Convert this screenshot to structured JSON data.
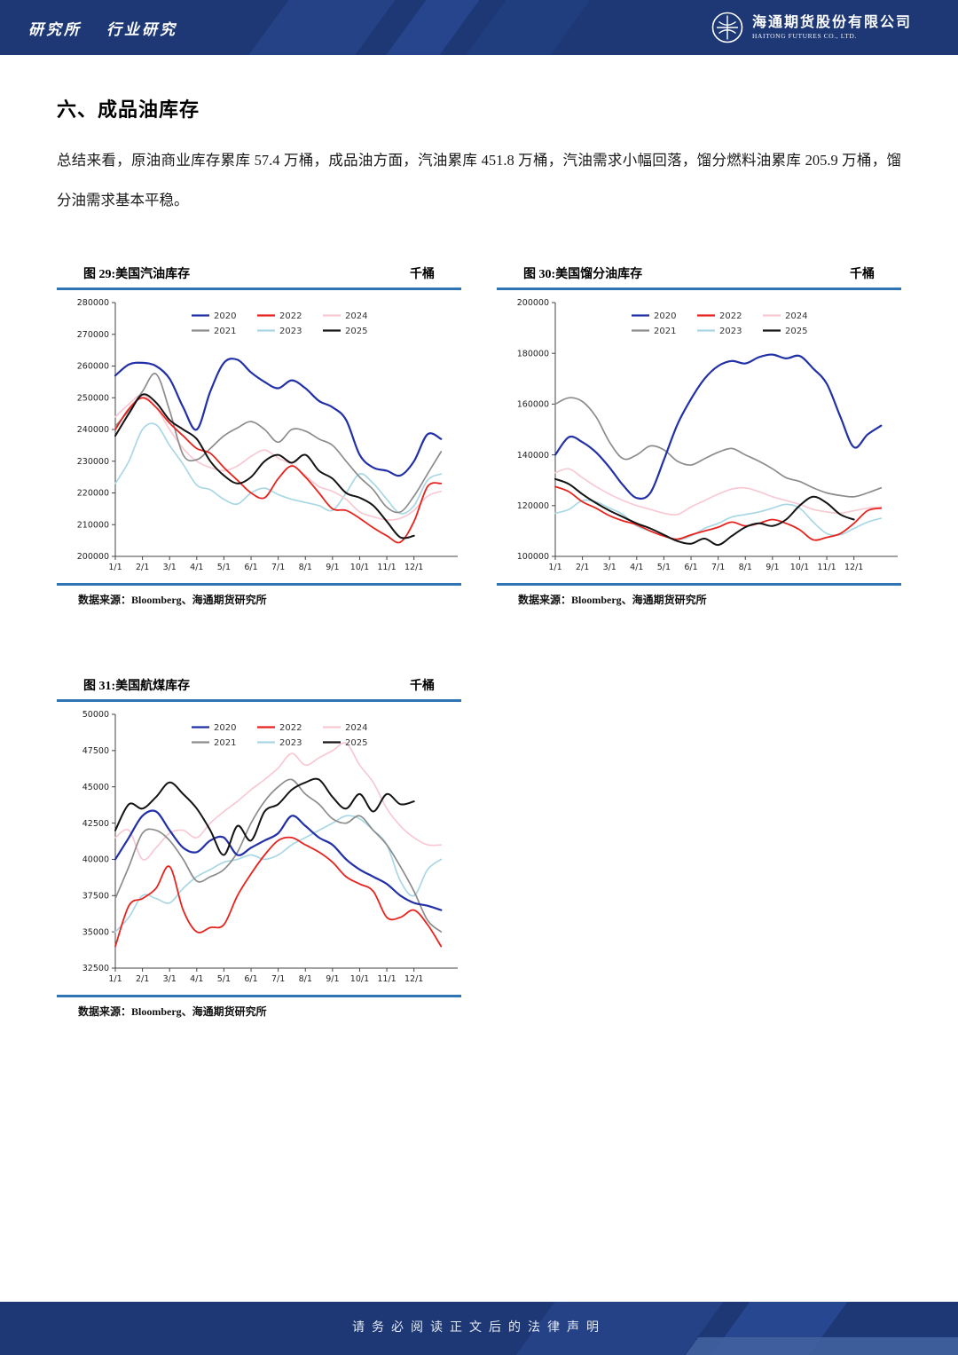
{
  "header": {
    "institute": "研究所",
    "report_type": "行业研究",
    "company_cn": "海通期货股份有限公司",
    "company_en": "HAITONG FUTURES CO., LTD."
  },
  "section": {
    "title": "六、成品油库存",
    "summary": "总结来看，原油商业库存累库 57.4 万桶，成品油方面，汽油累库 451.8 万桶，汽油需求小幅回落，馏分燃料油累库 205.9 万桶，馏分油需求基本平稳。"
  },
  "footer": {
    "disclaimer": "请务必阅读正文后的法律声明"
  },
  "colors": {
    "band_blue": "#1d3875",
    "rule_blue": "#2e74b5",
    "s2020": "#2230a8",
    "s2021": "#8c8c8c",
    "s2022": "#e8231d",
    "s2023": "#a9d8e4",
    "s2024": "#f8c9d3",
    "s2025": "#141414"
  },
  "chart_data": [
    {
      "id": "fig29",
      "type": "line",
      "title": "图 29:美国汽油库存",
      "unit": "千桶",
      "source": "数据来源：Bloomberg、海通期货研究所",
      "x_tick_labels": [
        "1/1",
        "2/1",
        "3/1",
        "4/1",
        "5/1",
        "6/1",
        "7/1",
        "8/1",
        "9/1",
        "10/1",
        "11/1",
        "12/1"
      ],
      "ylim": [
        200000,
        280000
      ],
      "y_ticks": [
        200000,
        210000,
        220000,
        230000,
        240000,
        250000,
        260000,
        270000,
        280000
      ],
      "legend_rows": [
        [
          "2020",
          "2022",
          "2024"
        ],
        [
          "2021",
          "2023",
          "2025"
        ]
      ],
      "series": [
        {
          "name": "2020",
          "color": "#2230a8",
          "width": 2.2,
          "x_span": 12,
          "values": [
            257000,
            260500,
            261000,
            260000,
            256000,
            247000,
            240000,
            252000,
            261000,
            262000,
            258000,
            255000,
            253000,
            255500,
            253000,
            249000,
            247000,
            243000,
            232000,
            228000,
            227000,
            225500,
            230000,
            238500,
            237000
          ]
        },
        {
          "name": "2021",
          "color": "#8c8c8c",
          "width": 1.7,
          "x_span": 12,
          "values": [
            241000,
            246000,
            252000,
            257500,
            246000,
            232000,
            230500,
            234000,
            238000,
            240500,
            242500,
            240000,
            236000,
            240000,
            239500,
            237000,
            235000,
            230000,
            225000,
            221000,
            215500,
            214000,
            219000,
            226000,
            233000
          ]
        },
        {
          "name": "2022",
          "color": "#e8231d",
          "width": 1.8,
          "x_span": 12,
          "values": [
            240000,
            246500,
            250000,
            247000,
            242000,
            238000,
            234000,
            232500,
            228000,
            224000,
            220000,
            218500,
            224500,
            228500,
            225000,
            220000,
            215000,
            214500,
            212000,
            209000,
            206500,
            204500,
            211000,
            222000,
            223000
          ]
        },
        {
          "name": "2023",
          "color": "#a9d8e4",
          "width": 1.7,
          "x_span": 12,
          "values": [
            223000,
            230000,
            240000,
            241500,
            235000,
            229000,
            222500,
            221000,
            218000,
            216500,
            220000,
            221500,
            219500,
            218000,
            217000,
            216000,
            214500,
            220000,
            226000,
            223000,
            218000,
            213500,
            216000,
            224000,
            226000
          ]
        },
        {
          "name": "2024",
          "color": "#f8c9d3",
          "width": 1.7,
          "x_span": 12,
          "values": [
            244000,
            248000,
            251000,
            247000,
            240000,
            234000,
            230000,
            228000,
            227000,
            228500,
            231500,
            233500,
            231000,
            229000,
            225500,
            222000,
            220500,
            218000,
            214000,
            212500,
            211500,
            212000,
            214500,
            219000,
            220500
          ]
        },
        {
          "name": "2025",
          "color": "#141414",
          "width": 2.0,
          "x_span": 11,
          "values": [
            238000,
            245000,
            251000,
            248500,
            243000,
            240000,
            237000,
            230000,
            225500,
            223000,
            225000,
            230000,
            232000,
            229500,
            232000,
            227000,
            224500,
            220000,
            218500,
            216000,
            211000,
            206000,
            206500
          ]
        }
      ]
    },
    {
      "id": "fig30",
      "type": "line",
      "title": "图 30:美国馏分油库存",
      "unit": "千桶",
      "source": "数据来源：Bloomberg、海通期货研究所",
      "x_tick_labels": [
        "1/1",
        "2/1",
        "3/1",
        "4/1",
        "5/1",
        "6/1",
        "7/1",
        "8/1",
        "9/1",
        "10/1",
        "11/1",
        "12/1"
      ],
      "ylim": [
        100000,
        200000
      ],
      "y_ticks": [
        100000,
        120000,
        140000,
        160000,
        180000,
        200000
      ],
      "legend_rows": [
        [
          "2020",
          "2022",
          "2024"
        ],
        [
          "2021",
          "2023",
          "2025"
        ]
      ],
      "series": [
        {
          "name": "2020",
          "color": "#2230a8",
          "width": 2.2,
          "x_span": 12,
          "values": [
            140000,
            147000,
            145000,
            141000,
            135000,
            128000,
            123000,
            125000,
            138000,
            152000,
            162000,
            170000,
            175000,
            177000,
            176000,
            178500,
            179500,
            178000,
            179000,
            174000,
            168000,
            155000,
            143000,
            148000,
            151500
          ]
        },
        {
          "name": "2021",
          "color": "#8c8c8c",
          "width": 1.7,
          "x_span": 12,
          "values": [
            160000,
            162500,
            161000,
            155000,
            145000,
            138500,
            140000,
            143500,
            142000,
            137500,
            136000,
            138500,
            141000,
            142500,
            140000,
            137500,
            134500,
            131000,
            129500,
            127000,
            125000,
            124000,
            123500,
            125000,
            127000
          ]
        },
        {
          "name": "2022",
          "color": "#e8231d",
          "width": 1.8,
          "x_span": 12,
          "values": [
            127500,
            125500,
            121500,
            119000,
            116000,
            114000,
            112500,
            110000,
            108000,
            106800,
            108500,
            110000,
            111500,
            113500,
            112000,
            113000,
            114500,
            113000,
            110500,
            106500,
            107500,
            109000,
            113000,
            118000,
            119000
          ]
        },
        {
          "name": "2023",
          "color": "#a9d8e4",
          "width": 1.7,
          "x_span": 12,
          "values": [
            117000,
            118500,
            122000,
            121500,
            119000,
            116500,
            112000,
            110000,
            108000,
            106500,
            108000,
            111000,
            113000,
            115500,
            116500,
            117500,
            119000,
            120500,
            119000,
            113500,
            109000,
            108500,
            111000,
            113500,
            115000
          ]
        },
        {
          "name": "2024",
          "color": "#f8c9d3",
          "width": 1.7,
          "x_span": 12,
          "values": [
            133000,
            134500,
            131000,
            127500,
            124500,
            122000,
            120000,
            118500,
            117000,
            116500,
            119500,
            122000,
            124500,
            126500,
            127000,
            125500,
            123500,
            122000,
            120500,
            118500,
            117500,
            117000,
            118000,
            119000,
            119500
          ]
        },
        {
          "name": "2025",
          "color": "#141414",
          "width": 2.0,
          "x_span": 11,
          "values": [
            130500,
            128500,
            124500,
            121000,
            118000,
            115500,
            113000,
            111000,
            108500,
            106000,
            105000,
            107000,
            104500,
            108000,
            111500,
            113000,
            112000,
            114500,
            120000,
            123500,
            121000,
            116500,
            114500
          ]
        }
      ]
    },
    {
      "id": "fig31",
      "type": "line",
      "title": "图 31:美国航煤库存",
      "unit": "千桶",
      "source": "数据来源：Bloomberg、海通期货研究所",
      "x_tick_labels": [
        "1/1",
        "2/1",
        "3/1",
        "4/1",
        "5/1",
        "6/1",
        "7/1",
        "8/1",
        "9/1",
        "10/1",
        "11/1",
        "12/1"
      ],
      "ylim": [
        32500,
        50000
      ],
      "y_ticks": [
        32500,
        35000,
        37500,
        40000,
        42500,
        45000,
        47500,
        50000
      ],
      "legend_rows": [
        [
          "2020",
          "2022",
          "2024"
        ],
        [
          "2021",
          "2023",
          "2025"
        ]
      ],
      "series": [
        {
          "name": "2020",
          "color": "#2230a8",
          "width": 2.2,
          "x_span": 12,
          "values": [
            40000,
            41500,
            43000,
            43300,
            42000,
            40800,
            40500,
            41300,
            41500,
            40300,
            40800,
            41300,
            41800,
            43000,
            42300,
            41500,
            41000,
            40000,
            39300,
            38800,
            38300,
            37500,
            37000,
            36800,
            36500
          ]
        },
        {
          "name": "2021",
          "color": "#8c8c8c",
          "width": 1.7,
          "x_span": 12,
          "values": [
            37300,
            39500,
            41800,
            42000,
            41300,
            40000,
            38500,
            38800,
            39300,
            40500,
            42500,
            44000,
            45000,
            45500,
            44500,
            43800,
            42800,
            42500,
            43000,
            42000,
            41000,
            39500,
            37800,
            35800,
            35000
          ]
        },
        {
          "name": "2022",
          "color": "#e8231d",
          "width": 1.8,
          "x_span": 12,
          "values": [
            34000,
            36800,
            37300,
            38000,
            39500,
            36500,
            35000,
            35300,
            35500,
            37500,
            39000,
            40300,
            41300,
            41500,
            41000,
            40500,
            39800,
            38800,
            38300,
            37800,
            36000,
            36000,
            36500,
            35500,
            34000
          ]
        },
        {
          "name": "2023",
          "color": "#a9d8e4",
          "width": 1.7,
          "x_span": 12,
          "values": [
            35000,
            36000,
            37500,
            37300,
            37000,
            38000,
            38800,
            39300,
            39800,
            40000,
            40300,
            40000,
            40300,
            41000,
            41500,
            42000,
            42500,
            43000,
            42800,
            42000,
            41000,
            38500,
            37500,
            39300,
            40000
          ]
        },
        {
          "name": "2024",
          "color": "#f8c9d3",
          "width": 1.7,
          "x_span": 12,
          "values": [
            41500,
            42000,
            40000,
            40800,
            41800,
            42000,
            41500,
            42500,
            43300,
            44000,
            44800,
            45500,
            46300,
            47300,
            46500,
            47000,
            47500,
            48000,
            46500,
            45300,
            43500,
            42300,
            41500,
            41000,
            41000
          ]
        },
        {
          "name": "2025",
          "color": "#141414",
          "width": 2.0,
          "x_span": 11,
          "values": [
            42000,
            43800,
            43500,
            44300,
            45300,
            44500,
            43500,
            42000,
            40300,
            42300,
            41300,
            43300,
            43800,
            44800,
            45300,
            45500,
            44300,
            43500,
            44500,
            43300,
            44500,
            43800,
            44000
          ]
        }
      ]
    }
  ]
}
